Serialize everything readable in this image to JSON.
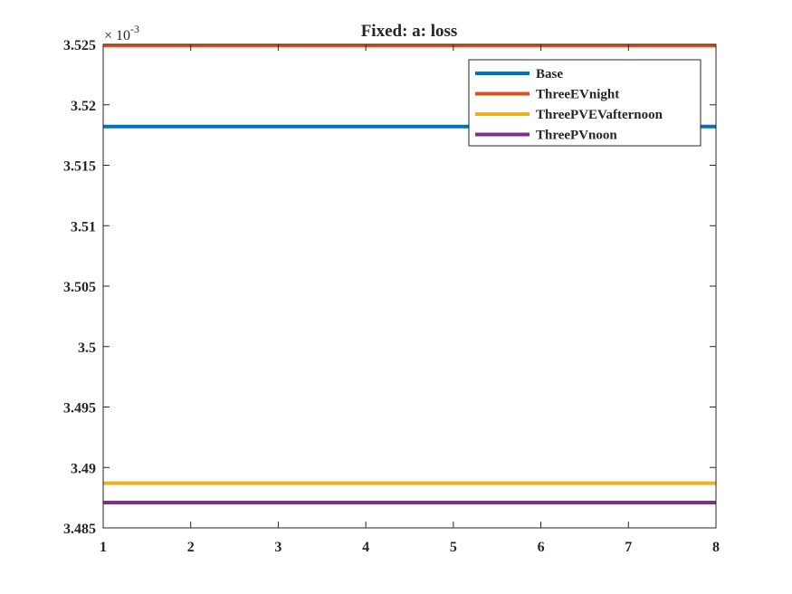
{
  "chart_data": {
    "type": "line",
    "title": "Fixed: a: loss",
    "xlabel": "",
    "ylabel": "",
    "xlim": [
      1,
      8
    ],
    "ylim": [
      3.485,
      3.525
    ],
    "x_ticks": [
      1,
      2,
      3,
      4,
      5,
      6,
      7,
      8
    ],
    "x_tick_labels": [
      "1",
      "2",
      "3",
      "4",
      "5",
      "6",
      "7",
      "8"
    ],
    "y_ticks": [
      3.485,
      3.49,
      3.495,
      3.5,
      3.505,
      3.51,
      3.515,
      3.52,
      3.525
    ],
    "y_tick_labels": [
      "3.485",
      "3.49",
      "3.495",
      "3.5",
      "3.505",
      "3.51",
      "3.515",
      "3.52",
      "3.525"
    ],
    "y_exponent_base": "× 10",
    "y_exponent_power": "-3",
    "grid": false,
    "legend_position": "top-right",
    "x": [
      1,
      2,
      3,
      4,
      5,
      6,
      7,
      8
    ],
    "series": [
      {
        "name": "Base",
        "color": "#0072bd",
        "values": [
          3.5182,
          3.5182,
          3.5182,
          3.5182,
          3.5182,
          3.5182,
          3.5182,
          3.5182
        ]
      },
      {
        "name": "ThreeEVnight",
        "color": "#d95319",
        "values": [
          3.5249,
          3.5249,
          3.5249,
          3.5249,
          3.5249,
          3.5249,
          3.5249,
          3.5249
        ]
      },
      {
        "name": "ThreePVEVafternoon",
        "color": "#edb120",
        "values": [
          3.4887,
          3.4887,
          3.4887,
          3.4887,
          3.4887,
          3.4887,
          3.4887,
          3.4887
        ]
      },
      {
        "name": "ThreePVnoon",
        "color": "#7e2f8e",
        "values": [
          3.4871,
          3.4871,
          3.4871,
          3.4871,
          3.4871,
          3.4871,
          3.4871,
          3.4871
        ]
      }
    ]
  }
}
